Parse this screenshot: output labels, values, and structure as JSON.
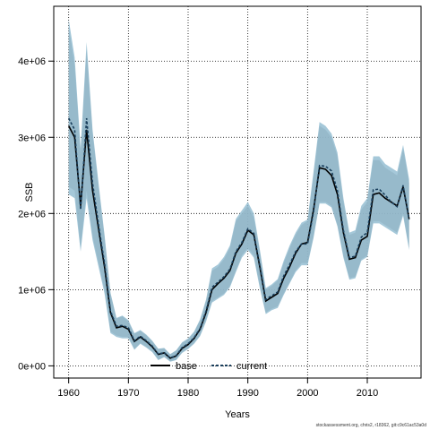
{
  "chart_data": {
    "type": "line",
    "xlabel": "Years",
    "ylabel": "SSB",
    "xlim": [
      1957.5,
      2019
    ],
    "ylim": [
      -160000,
      4720000
    ],
    "x_ticks": [
      1960,
      1970,
      1980,
      1990,
      2000,
      2010
    ],
    "x_tick_labels": [
      "1960",
      "1970",
      "1980",
      "1990",
      "2000",
      "2010"
    ],
    "y_ticks": [
      0,
      1000000,
      2000000,
      3000000,
      4000000
    ],
    "y_tick_labels": [
      "0e+00",
      "1e+06",
      "2e+06",
      "3e+06",
      "4e+06"
    ],
    "grid": true,
    "legend_position": "bottom",
    "colors": {
      "base_band": "#a0a0a0",
      "current_band": "#8fbad0",
      "base_line": "#000000",
      "current_line": "#1a3f5c"
    },
    "x": [
      1960,
      1961,
      1962,
      1963,
      1964,
      1965,
      1966,
      1967,
      1968,
      1969,
      1970,
      1971,
      1972,
      1973,
      1974,
      1975,
      1976,
      1977,
      1978,
      1979,
      1980,
      1981,
      1982,
      1983,
      1984,
      1985,
      1986,
      1987,
      1988,
      1989,
      1990,
      1991,
      1992,
      1993,
      1994,
      1995,
      1996,
      1997,
      1998,
      1999,
      2000,
      2001,
      2002,
      2003,
      2004,
      2005,
      2006,
      2007,
      2008,
      2009,
      2010,
      2011,
      2012,
      2013,
      2014,
      2015,
      2016,
      2017
    ],
    "series": [
      {
        "name": "base",
        "style": "solid",
        "values": [
          3150000,
          3000000,
          2100000,
          3100000,
          2300000,
          1800000,
          1300000,
          700000,
          500000,
          520000,
          480000,
          320000,
          380000,
          320000,
          250000,
          150000,
          170000,
          100000,
          130000,
          230000,
          280000,
          360000,
          480000,
          700000,
          1000000,
          1080000,
          1150000,
          1250000,
          1480000,
          1600000,
          1780000,
          1720000,
          1300000,
          850000,
          900000,
          950000,
          1150000,
          1300000,
          1480000,
          1600000,
          1620000,
          2050000,
          2600000,
          2580000,
          2500000,
          2250000,
          1750000,
          1400000,
          1420000,
          1650000,
          1700000,
          2250000,
          2270000,
          2200000,
          2150000,
          2100000,
          2350000,
          1930000
        ],
        "lower": [
          2350000,
          2300000,
          1550000,
          2300000,
          1700000,
          1350000,
          1000000,
          450000,
          400000,
          380000,
          380000,
          220000,
          300000,
          250000,
          190000,
          80000,
          120000,
          60000,
          80000,
          180000,
          230000,
          300000,
          400000,
          600000,
          850000,
          900000,
          950000,
          1050000,
          1250000,
          1450000,
          1550000,
          1450000,
          1050000,
          700000,
          750000,
          780000,
          950000,
          1100000,
          1250000,
          1350000,
          1350000,
          1700000,
          2150000,
          2150000,
          2100000,
          1850000,
          1450000,
          1150000,
          1170000,
          1400000,
          1450000,
          1900000,
          1900000,
          1850000,
          1800000,
          1750000,
          2000000,
          1550000
        ],
        "upper": [
          4450000,
          3950000,
          2800000,
          4150000,
          3050000,
          2350000,
          1700000,
          950000,
          620000,
          650000,
          580000,
          420000,
          460000,
          400000,
          320000,
          220000,
          230000,
          150000,
          200000,
          300000,
          350000,
          440000,
          600000,
          850000,
          1250000,
          1300000,
          1400000,
          1550000,
          1900000,
          2000000,
          2100000,
          1950000,
          1500000,
          1000000,
          1050000,
          1120000,
          1350000,
          1550000,
          1720000,
          1850000,
          1900000,
          2500000,
          3150000,
          3100000,
          3000000,
          2750000,
          2150000,
          1720000,
          1750000,
          2050000,
          2150000,
          2700000,
          2700000,
          2600000,
          2550000,
          2500000,
          2850000,
          2400000
        ]
      },
      {
        "name": "current",
        "style": "dashed",
        "values": [
          3250000,
          3100000,
          2050000,
          3250000,
          2400000,
          1850000,
          1350000,
          720000,
          520000,
          530000,
          500000,
          330000,
          390000,
          330000,
          260000,
          155000,
          175000,
          105000,
          135000,
          240000,
          290000,
          370000,
          490000,
          720000,
          1030000,
          1100000,
          1170000,
          1270000,
          1500000,
          1620000,
          1800000,
          1740000,
          1320000,
          870000,
          920000,
          970000,
          1180000,
          1330000,
          1500000,
          1600000,
          1600000,
          2020000,
          2630000,
          2620000,
          2560000,
          2300000,
          1780000,
          1420000,
          1440000,
          1690000,
          1750000,
          2310000,
          2320000,
          2240000,
          2150000,
          2090000,
          2370000,
          1920000
        ],
        "lower": [
          2250000,
          2200000,
          1500000,
          2200000,
          1650000,
          1300000,
          950000,
          430000,
          380000,
          360000,
          360000,
          210000,
          290000,
          240000,
          180000,
          75000,
          115000,
          55000,
          75000,
          170000,
          220000,
          290000,
          390000,
          580000,
          830000,
          880000,
          930000,
          1030000,
          1230000,
          1420000,
          1520000,
          1420000,
          1020000,
          680000,
          730000,
          760000,
          930000,
          1080000,
          1230000,
          1320000,
          1320000,
          1680000,
          2130000,
          2130000,
          2080000,
          1830000,
          1420000,
          1130000,
          1150000,
          1380000,
          1430000,
          1870000,
          1870000,
          1820000,
          1770000,
          1720000,
          1970000,
          1520000
        ],
        "upper": [
          4550000,
          4050000,
          2850000,
          4250000,
          3100000,
          2400000,
          1720000,
          960000,
          630000,
          660000,
          600000,
          430000,
          470000,
          410000,
          330000,
          225000,
          235000,
          155000,
          205000,
          310000,
          360000,
          450000,
          610000,
          870000,
          1280000,
          1330000,
          1430000,
          1580000,
          1930000,
          2040000,
          2150000,
          2000000,
          1530000,
          1020000,
          1070000,
          1140000,
          1380000,
          1580000,
          1750000,
          1880000,
          1920000,
          2550000,
          3200000,
          3150000,
          3050000,
          2800000,
          2200000,
          1750000,
          1780000,
          2100000,
          2200000,
          2750000,
          2750000,
          2650000,
          2600000,
          2550000,
          2900000,
          2450000
        ]
      }
    ]
  },
  "footnote": "stockassessment.org, chris2, r18362, git:c9c61ac53a0d"
}
